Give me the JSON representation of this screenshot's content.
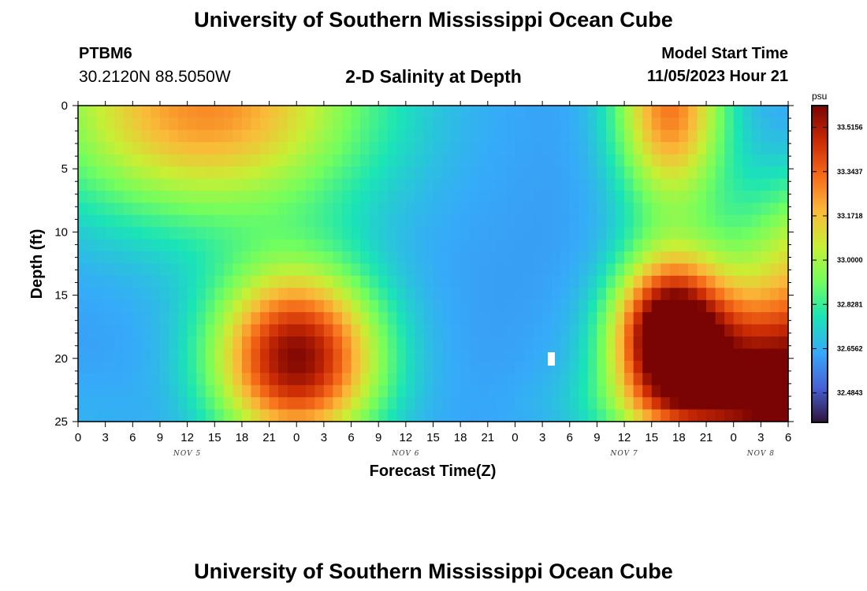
{
  "header": {
    "title": "University of Southern Mississippi Ocean Cube",
    "station_id": "PTBM6",
    "station_coords": "30.2120N  88.5050W",
    "chart_title": "2-D Salinity at Depth",
    "model_start_label": "Model Start Time",
    "model_start_value": "11/05/2023 Hour 21",
    "bottom_title": "University of Southern Mississippi Ocean Cube"
  },
  "chart_data": {
    "type": "heatmap",
    "title": "2-D Salinity at Depth",
    "xlabel": "Forecast Time(Z)",
    "ylabel": "Depth (ft)",
    "x_tick_labels": [
      "0",
      "3",
      "6",
      "9",
      "12",
      "15",
      "18",
      "21",
      "0",
      "3",
      "6",
      "9",
      "12",
      "15",
      "18",
      "21",
      "0",
      "3",
      "6",
      "9",
      "12",
      "15",
      "18",
      "21",
      "0",
      "3",
      "6"
    ],
    "day_labels": [
      {
        "label": "NOV 5",
        "tick_index": 4
      },
      {
        "label": "NOV 6",
        "tick_index": 12
      },
      {
        "label": "NOV 7",
        "tick_index": 20
      },
      {
        "label": "NOV 8",
        "tick_index": 25
      }
    ],
    "y_ticks": [
      0,
      5,
      10,
      15,
      20,
      25
    ],
    "ylim": [
      0,
      25
    ],
    "y_inverted": true,
    "colorbar": {
      "unit": "psu",
      "tick_labels": [
        "33.5156",
        "33.3437",
        "33.1718",
        "33.0000",
        "32.8281",
        "32.6562",
        "32.4843"
      ],
      "range": [
        32.37,
        33.6
      ],
      "colormap": [
        "#30123b",
        "#4662d7",
        "#36aaf9",
        "#1ae4b6",
        "#72fe5e",
        "#c8ef34",
        "#faba39",
        "#f66b19",
        "#ca2a04",
        "#7a0403"
      ]
    },
    "grid": {
      "x_hours": 78,
      "depth_steps": 26
    },
    "features": [
      {
        "hour": 14,
        "depth": 0,
        "value": 33.27,
        "sx": 18,
        "sd": 9
      },
      {
        "hour": 24,
        "depth": 20,
        "value": 33.58,
        "sx": 9,
        "sd": 7
      },
      {
        "hour": 65,
        "depth": 0,
        "value": 33.3,
        "sx": 6,
        "sd": 8
      },
      {
        "hour": 65,
        "depth": 18,
        "value": 33.62,
        "sx": 6,
        "sd": 6
      },
      {
        "hour": 78,
        "depth": 21,
        "value": 33.48,
        "sx": 14,
        "sd": 6
      },
      {
        "hour": 84,
        "depth": 12,
        "value": 33.13,
        "sx": 12,
        "sd": 7
      },
      {
        "hour": 83,
        "depth": 24,
        "value": 33.09,
        "sx": 20,
        "sd": 3
      },
      {
        "hour": 0,
        "depth": 25,
        "value": 32.66,
        "sx": 8,
        "sd": 4
      }
    ],
    "baseline": 32.62
  }
}
